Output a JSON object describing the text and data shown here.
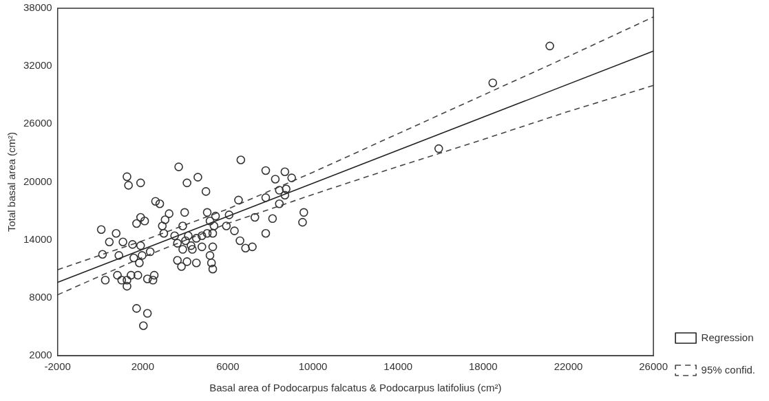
{
  "chart_data": {
    "type": "scatter",
    "xlabel": "Basal area of Podocarpus falcatus & Podocarpus latifolius (cm²)",
    "ylabel": "Total basal area (cm²)",
    "xlim": [
      -2000,
      26000
    ],
    "xticks": [
      -2000,
      2000,
      6000,
      10000,
      14000,
      18000,
      22000,
      26000
    ],
    "ylim": [
      2000,
      38000
    ],
    "yticks": [
      2000,
      8000,
      14000,
      20000,
      26000,
      32000,
      38000
    ],
    "grid": false,
    "legend": "bottom right",
    "marker": "circle",
    "series": [
      {
        "color": "#333333",
        "x": [
          21130,
          18450,
          15910,
          3690,
          6610,
          4590,
          4080,
          4970,
          1260,
          1330,
          1900,
          2600,
          2800,
          6500,
          3240,
          3970,
          5030,
          5420,
          6060,
          7270,
          1900,
          1710,
          2090,
          50,
          750,
          430,
          1070,
          1520,
          1900,
          110,
          880,
          1580,
          1970,
          2350,
          1840,
          2920,
          3050,
          2990,
          3500,
          3880,
          4140,
          3630,
          4010,
          4520,
          4780,
          5030,
          5290,
          5350,
          5160,
          4270,
          3880,
          4330,
          4780,
          5290,
          5160,
          5230,
          5290,
          3630,
          3820,
          4080,
          4520,
          5930,
          6310,
          6570,
          6830,
          7150,
          240,
          810,
          1010,
          1260,
          1260,
          1450,
          1770,
          2220,
          2480,
          2540,
          1710,
          2220,
          2030,
          7780,
          8680,
          9000,
          8230,
          8420,
          8740,
          8680,
          7780,
          8420,
          9570,
          9510,
          8100,
          7780
        ],
        "values": [
          34090,
          30270,
          23450,
          21560,
          22280,
          20490,
          19900,
          19010,
          20540,
          19650,
          19900,
          17990,
          17740,
          18120,
          16710,
          16840,
          16840,
          16460,
          16590,
          16330,
          16330,
          15690,
          15950,
          15060,
          14670,
          13780,
          13780,
          13520,
          13400,
          12500,
          12380,
          12120,
          12380,
          12760,
          11610,
          15440,
          16080,
          14670,
          14420,
          15440,
          14420,
          13650,
          13910,
          14160,
          14420,
          14670,
          14670,
          15440,
          15950,
          13400,
          13010,
          13010,
          13270,
          13270,
          12380,
          11610,
          10970,
          11870,
          11230,
          11740,
          11610,
          15440,
          14930,
          13910,
          13140,
          13270,
          9820,
          10330,
          9820,
          9820,
          9190,
          10330,
          10330,
          9950,
          9820,
          10330,
          6890,
          6380,
          5100,
          21180,
          21050,
          20420,
          20290,
          19140,
          19270,
          18630,
          18370,
          17740,
          16840,
          15820,
          16200,
          14670
        ]
      },
      {
        "type": "line",
        "name": "Regression",
        "color": "#222222",
        "line_style": "solid",
        "marker": "none",
        "x": [
          -2000,
          26000
        ],
        "values": [
          9590,
          33560
        ]
      },
      {
        "type": "line",
        "name": "95% confid.",
        "color": "#444444",
        "line_style": "dashed",
        "marker": "none",
        "x": [
          -2000,
          2000,
          6000,
          10000,
          14000,
          18000,
          22000,
          26000
        ],
        "values": [
          10900,
          13900,
          17200,
          21000,
          25000,
          29000,
          33000,
          37100
        ]
      },
      {
        "type": "line",
        "color": "#444444",
        "line_style": "dashed",
        "marker": "none",
        "x": [
          -2000,
          2000,
          6000,
          10000,
          14000,
          18000,
          22000,
          26000
        ],
        "values": [
          8300,
          12200,
          15700,
          18700,
          21600,
          24400,
          27300,
          30000
        ]
      }
    ]
  }
}
